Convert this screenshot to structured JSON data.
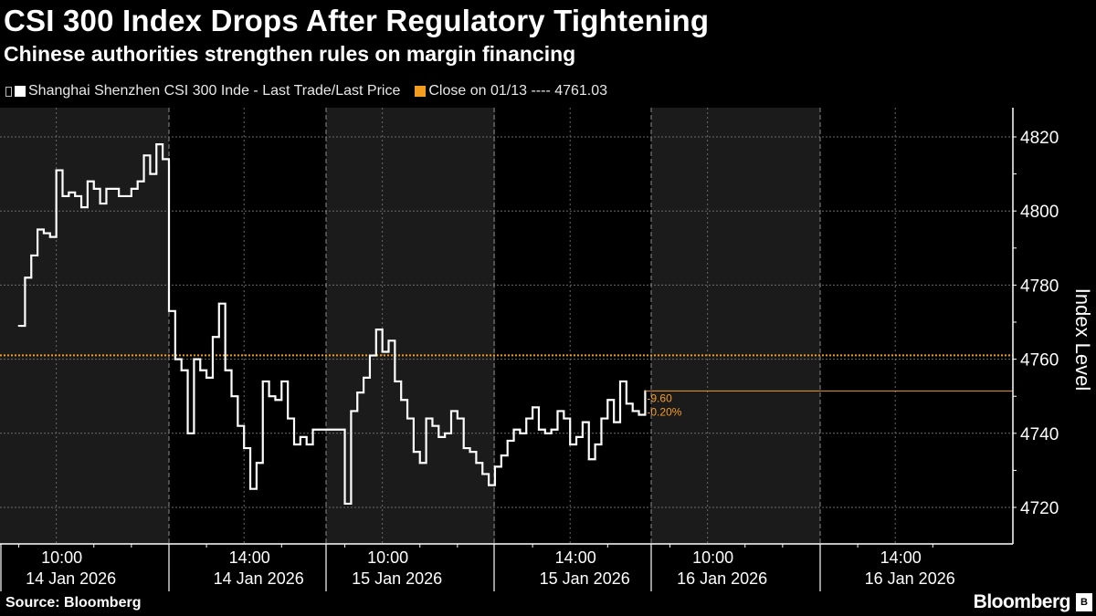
{
  "header": {
    "title": "CSI 300 Index Drops After Regulatory Tightening",
    "subtitle": "Chinese authorities strengthen rules on margin financing"
  },
  "legend": {
    "series_label": "Shanghai Shenzhen CSI 300 Inde - Last Trade/Last Price",
    "close_label": "Close on 01/13 ---- 4761.03"
  },
  "footer": {
    "source": "Source: Bloomberg",
    "logo": "Bloomberg",
    "logo_badge": "B"
  },
  "colors": {
    "background": "#000000",
    "session_shade": "#1b1b1b",
    "line": "#ffffff",
    "close": "#f39c1f",
    "grid": "#6a6a6a"
  },
  "chart_data": {
    "type": "line",
    "title": "CSI 300 Index Drops After Regulatory Tightening",
    "subtitle": "Chinese authorities strengthen rules on margin financing",
    "ylabel": "Index Level",
    "ylim": [
      4710,
      4828
    ],
    "yticks": [
      4720,
      4740,
      4760,
      4780,
      4800,
      4820
    ],
    "ytick_labels": [
      "4720",
      "4740",
      "4760",
      "4780",
      "4800",
      "4820"
    ],
    "y_axis_side": "right",
    "grid": true,
    "legend_position": "top-left",
    "xticks": [
      {
        "time": "10:00",
        "date": "14 Jan 2026"
      },
      {
        "time": "14:00",
        "date": "14 Jan 2026"
      },
      {
        "time": "10:00",
        "date": "15 Jan 2026"
      },
      {
        "time": "14:00",
        "date": "15 Jan 2026"
      },
      {
        "time": "10:00",
        "date": "16 Jan 2026"
      },
      {
        "time": "14:00",
        "date": "16 Jan 2026"
      }
    ],
    "series": [
      {
        "name": "Shanghai Shenzhen CSI 300 Inde - Last Trade/Last Price",
        "style": "step",
        "interval_min": 5,
        "sessions": [
          {
            "date": "14 Jan 2026",
            "start": "09:30",
            "end": "11:30",
            "values": [
              4769,
              4782,
              4788,
              4795,
              4794,
              4793,
              4811,
              4804,
              4805,
              4804,
              4801,
              4808,
              4806,
              4802,
              4806,
              4806,
              4804,
              4804,
              4806,
              4808,
              4815,
              4810,
              4818,
              4814,
              4813
            ]
          },
          {
            "date": "14 Jan 2026",
            "start": "13:00",
            "end": "15:00",
            "values": [
              4773,
              4760,
              4757,
              4740,
              4760,
              4757,
              4755,
              4766,
              4775,
              4757,
              4750,
              4742,
              4736,
              4725,
              4732,
              4754,
              4750,
              4749,
              4754,
              4744,
              4737,
              4739,
              4737,
              4741,
              4741
            ]
          },
          {
            "date": "15 Jan 2026",
            "start": "09:30",
            "end": "11:30",
            "values": [
              4721,
              4746,
              4751,
              4755,
              4761,
              4768,
              4762,
              4765,
              4754,
              4749,
              4744,
              4735,
              4732,
              4744,
              4742,
              4739,
              4740,
              4746,
              4744,
              4736,
              4735,
              4732,
              4729,
              4726,
              4731
            ]
          },
          {
            "date": "15 Jan 2026",
            "start": "13:00",
            "end": "15:00",
            "values": [
              4731,
              4734,
              4738,
              4741,
              4740,
              4744,
              4747,
              4741,
              4740,
              4741,
              4746,
              4744,
              4737,
              4739,
              4743,
              4733,
              4737,
              4744,
              4749,
              4743,
              4754,
              4748,
              4746,
              4745,
              4751.43
            ]
          }
        ]
      },
      {
        "name": "Close on 01/13",
        "value": 4761.03,
        "style": "dotted"
      }
    ],
    "annotations": {
      "change": "-9.60",
      "change_pct": "-0.20%"
    }
  }
}
